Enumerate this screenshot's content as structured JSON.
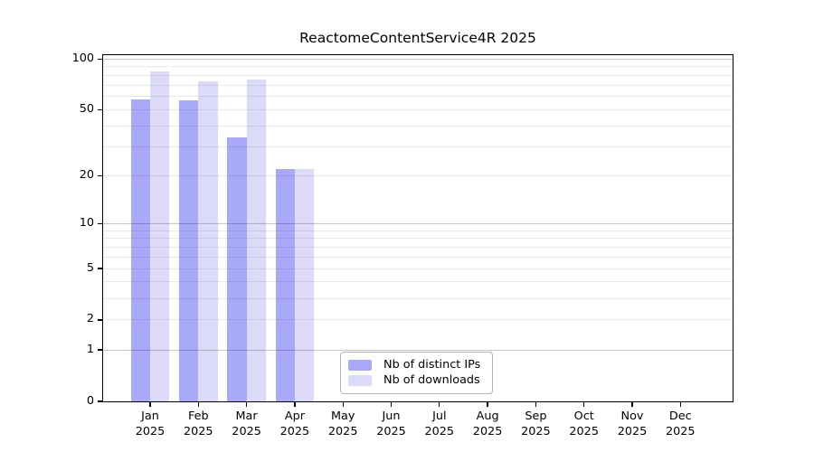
{
  "title": "ReactomeContentService4R 2025",
  "legend": {
    "items": [
      {
        "label": "Nb of distinct IPs",
        "color": "#a9a9f9"
      },
      {
        "label": "Nb of downloads",
        "color": "#dbdbf9"
      }
    ]
  },
  "chart_data": {
    "type": "bar",
    "title": "ReactomeContentService4R 2025",
    "y_scale": "log1p",
    "y_axis_top": 105.6,
    "ylim": [
      0,
      105.6
    ],
    "y_ticks": [
      100,
      50,
      20,
      10,
      5,
      2,
      1,
      0
    ],
    "grid": {
      "major": [
        100,
        10,
        1
      ],
      "minor": [
        90,
        80,
        70,
        60,
        50,
        40,
        30,
        20,
        9,
        8,
        7,
        6,
        5,
        4,
        3,
        2
      ]
    },
    "categories": [
      "Jan 2025",
      "Feb 2025",
      "Mar 2025",
      "Apr 2025",
      "May 2025",
      "Jun 2025",
      "Jul 2025",
      "Aug 2025",
      "Sep 2025",
      "Oct 2025",
      "Nov 2025",
      "Dec 2025"
    ],
    "series": [
      {
        "name": "Nb of distinct IPs",
        "key": "distinct-ips",
        "color": "#a9a9f9",
        "values": [
          58,
          57,
          34,
          22,
          null,
          null,
          null,
          null,
          null,
          null,
          null,
          null
        ]
      },
      {
        "name": "Nb of downloads",
        "key": "downloads",
        "color": "#dbdbf9",
        "values": [
          85,
          74,
          76,
          22,
          null,
          null,
          null,
          null,
          null,
          null,
          null,
          null
        ]
      }
    ],
    "legend_position": "lower center inside",
    "gridlines_over_bars": true
  },
  "colors": {
    "background": "#ffffff",
    "axis": "#000000",
    "grid_major": "#c9c9c9",
    "grid_minor": "#e9e9e9",
    "bar_distinct_ips": "#a9a9f9",
    "bar_downloads": "#dbdbf9",
    "legend_border": "#b4b4b4"
  }
}
